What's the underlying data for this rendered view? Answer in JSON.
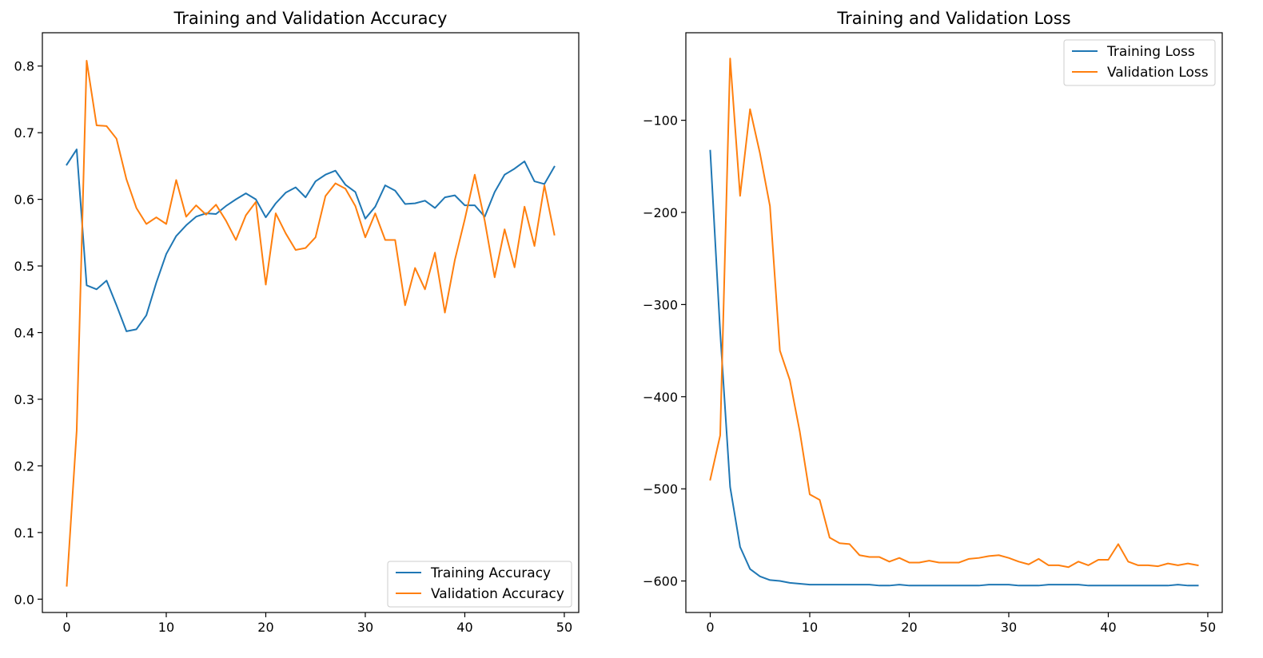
{
  "chart_data": [
    {
      "type": "line",
      "title": "Training and Validation Accuracy",
      "xlabel": "",
      "ylabel": "",
      "xlim": [
        -2.45,
        51.45
      ],
      "ylim": [
        -0.02,
        0.85
      ],
      "x_ticks": [
        0,
        10,
        20,
        30,
        40,
        50
      ],
      "y_ticks": [
        0.0,
        0.1,
        0.2,
        0.3,
        0.4,
        0.5,
        0.6,
        0.7,
        0.8
      ],
      "y_tick_labels": [
        "0.0",
        "0.1",
        "0.2",
        "0.3",
        "0.4",
        "0.5",
        "0.6",
        "0.7",
        "0.8"
      ],
      "grid": false,
      "legend_position": "lower-right",
      "x": [
        0,
        1,
        2,
        3,
        4,
        5,
        6,
        7,
        8,
        9,
        10,
        11,
        12,
        13,
        14,
        15,
        16,
        17,
        18,
        19,
        20,
        21,
        22,
        23,
        24,
        25,
        26,
        27,
        28,
        29,
        30,
        31,
        32,
        33,
        34,
        35,
        36,
        37,
        38,
        39,
        40,
        41,
        42,
        43,
        44,
        45,
        46,
        47,
        48,
        49
      ],
      "series": [
        {
          "name": "Training Accuracy",
          "color": "#1f77b4",
          "values": [
            0.652,
            0.675,
            0.471,
            0.465,
            0.478,
            0.441,
            0.402,
            0.405,
            0.426,
            0.475,
            0.518,
            0.545,
            0.561,
            0.574,
            0.579,
            0.578,
            0.59,
            0.6,
            0.609,
            0.6,
            0.573,
            0.594,
            0.61,
            0.618,
            0.603,
            0.627,
            0.637,
            0.643,
            0.622,
            0.611,
            0.571,
            0.589,
            0.621,
            0.613,
            0.593,
            0.594,
            0.598,
            0.587,
            0.603,
            0.606,
            0.591,
            0.591,
            0.574,
            0.611,
            0.637,
            0.646,
            0.657,
            0.627,
            0.623,
            0.649
          ]
        },
        {
          "name": "Validation Accuracy",
          "color": "#ff7f0e",
          "values": [
            0.02,
            0.253,
            0.808,
            0.711,
            0.71,
            0.691,
            0.63,
            0.587,
            0.563,
            0.573,
            0.563,
            0.629,
            0.574,
            0.591,
            0.577,
            0.592,
            0.568,
            0.539,
            0.576,
            0.596,
            0.472,
            0.579,
            0.549,
            0.524,
            0.527,
            0.543,
            0.605,
            0.624,
            0.616,
            0.59,
            0.543,
            0.579,
            0.539,
            0.539,
            0.441,
            0.497,
            0.465,
            0.52,
            0.43,
            0.509,
            0.57,
            0.637,
            0.568,
            0.483,
            0.555,
            0.498,
            0.589,
            0.53,
            0.621,
            0.547
          ]
        }
      ]
    },
    {
      "type": "line",
      "title": "Training and Validation Loss",
      "xlabel": "",
      "ylabel": "",
      "xlim": [
        -2.45,
        51.45
      ],
      "ylim": [
        -634.2,
        -5.0
      ],
      "x_ticks": [
        0,
        10,
        20,
        30,
        40,
        50
      ],
      "y_ticks": [
        -600,
        -500,
        -400,
        -300,
        -200,
        -100
      ],
      "y_tick_labels": [
        "−600",
        "−500",
        "−400",
        "−300",
        "−200",
        "−100"
      ],
      "grid": false,
      "legend_position": "upper-right",
      "x": [
        0,
        1,
        2,
        3,
        4,
        5,
        6,
        7,
        8,
        9,
        10,
        11,
        12,
        13,
        14,
        15,
        16,
        17,
        18,
        19,
        20,
        21,
        22,
        23,
        24,
        25,
        26,
        27,
        28,
        29,
        30,
        31,
        32,
        33,
        34,
        35,
        36,
        37,
        38,
        39,
        40,
        41,
        42,
        43,
        44,
        45,
        46,
        47,
        48,
        49
      ],
      "series": [
        {
          "name": "Training Loss",
          "color": "#1f77b4",
          "values": [
            -133,
            -330,
            -498,
            -563,
            -587,
            -595,
            -599,
            -600,
            -602,
            -603,
            -604,
            -604,
            -604,
            -604,
            -604,
            -604,
            -604,
            -605,
            -605,
            -604,
            -605,
            -605,
            -605,
            -605,
            -605,
            -605,
            -605,
            -605,
            -604,
            -604,
            -604,
            -605,
            -605,
            -605,
            -604,
            -604,
            -604,
            -604,
            -605,
            -605,
            -605,
            -605,
            -605,
            -605,
            -605,
            -605,
            -605,
            -604,
            -605,
            -605
          ]
        },
        {
          "name": "Validation Loss",
          "color": "#ff7f0e",
          "values": [
            -490,
            -442,
            -33,
            -182,
            -88,
            -136,
            -193,
            -350,
            -382,
            -438,
            -506,
            -512,
            -553,
            -559,
            -560,
            -572,
            -574,
            -574,
            -579,
            -575,
            -580,
            -580,
            -578,
            -580,
            -580,
            -580,
            -576,
            -575,
            -573,
            -572,
            -575,
            -579,
            -582,
            -576,
            -583,
            -583,
            -585,
            -579,
            -583,
            -577,
            -577,
            -560,
            -579,
            -583,
            -583,
            -584,
            -581,
            -583,
            -581,
            -583
          ]
        }
      ]
    }
  ]
}
